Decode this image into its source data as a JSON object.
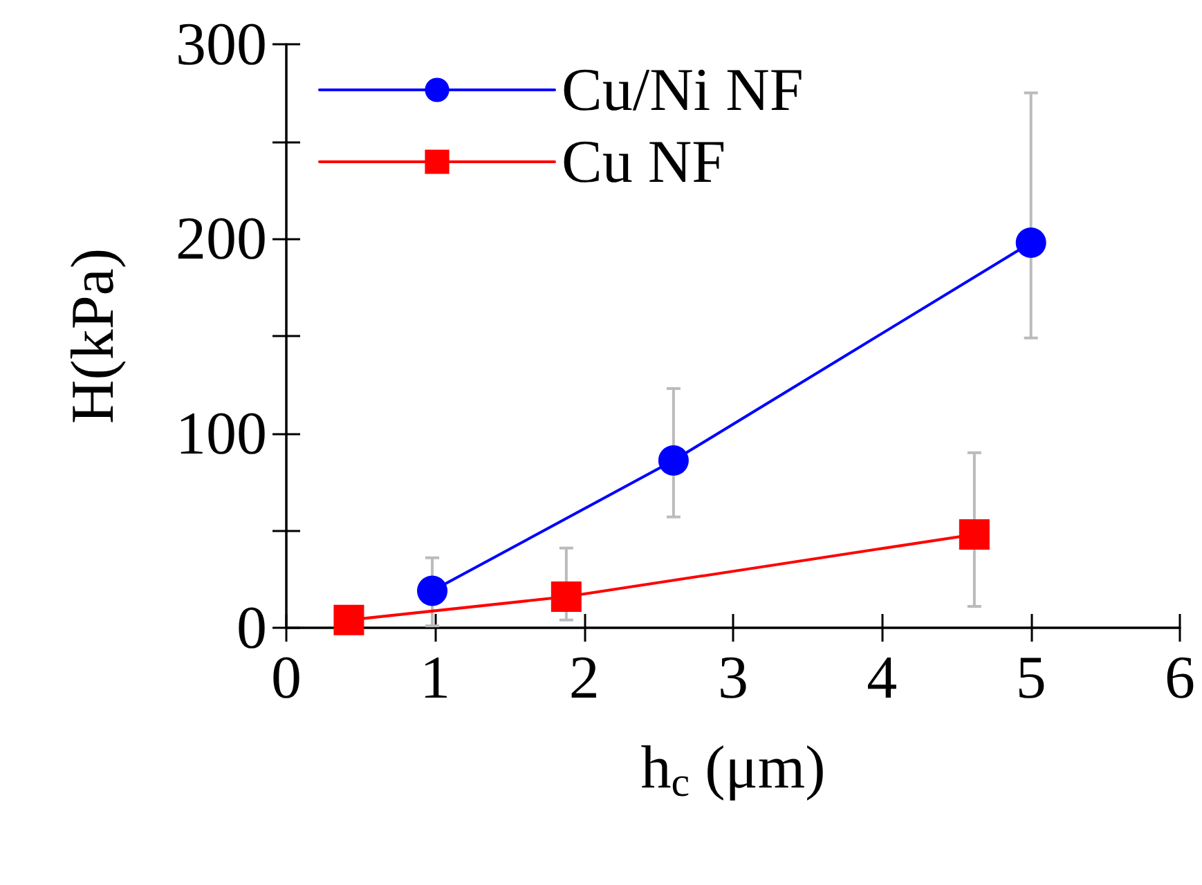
{
  "chart_data": {
    "type": "line",
    "xlabel": "h$_{c}$ (μm)",
    "ylabel": "H(kPa)",
    "xlim": [
      0,
      6
    ],
    "xticks": [
      0,
      1,
      2,
      3,
      4,
      5,
      6
    ],
    "ylim": [
      0,
      300
    ],
    "yticks": [
      0,
      {
        "value": 50,
        "label": null
      },
      100,
      {
        "value": 150,
        "label": null
      },
      200,
      {
        "value": 250,
        "label": null
      },
      300
    ],
    "legend": "top left",
    "grid": false,
    "series": [
      {
        "name": "Cu/Ni NF",
        "color": "#0000ff",
        "marker": "circle",
        "x": [
          0.98,
          2.6,
          5.0
        ],
        "values": [
          19,
          86,
          198
        ],
        "errors": [
          [
            1,
            36
          ],
          [
            57,
            123
          ],
          [
            149,
            275
          ]
        ]
      },
      {
        "name": "Cu NF",
        "color": "#ff0000",
        "marker": "square",
        "x": [
          0.42,
          1.88,
          4.62
        ],
        "values": [
          4,
          16,
          48
        ],
        "errors": [
          null,
          [
            4,
            41
          ],
          [
            11,
            90
          ]
        ]
      }
    ]
  }
}
